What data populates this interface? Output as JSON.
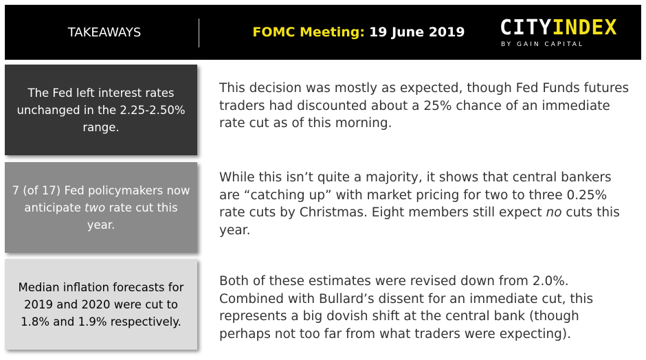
{
  "header": {
    "takeaways": "TAKEAWAYS",
    "meeting_label": "FOMC Meeting:",
    "meeting_date": "19 June 2019",
    "logo_city": "CITY",
    "logo_index": "INDEX",
    "logo_sub": "BY GAIN CAPITAL"
  },
  "colors": {
    "accent_yellow": "#f3e21b",
    "header_bg": "#000000",
    "box1_bg": "#363636",
    "box2_bg": "#8a8a8a",
    "box3_bg": "#dcdcdc"
  },
  "rows": [
    {
      "summary": "The Fed left interest rates unchanged in the 2.25-2.50% range.",
      "detail": "This decision was mostly as expected, though Fed Funds futures traders had discounted about a 25% chance of an immediate rate cut as of this morning."
    },
    {
      "summary_before": "7 (of 17) Fed policymakers now anticipate ",
      "summary_em": "two",
      "summary_after": " rate cut this year.",
      "detail_before": "While this isn’t quite a majority, it shows that central bankers are “catching up” with market pricing for two to three 0.25% rate cuts by Christmas. Eight members still expect ",
      "detail_em": "no",
      "detail_after": " cuts this year."
    },
    {
      "summary": "Median inflation forecasts for 2019 and 2020 were cut to 1.8% and 1.9% respectively.",
      "detail": "Both of these estimates were revised down from 2.0%. Combined with Bullard’s dissent for an immediate cut, this represents a big dovish shift at the central bank (though perhaps not too far from what traders were expecting)."
    }
  ]
}
